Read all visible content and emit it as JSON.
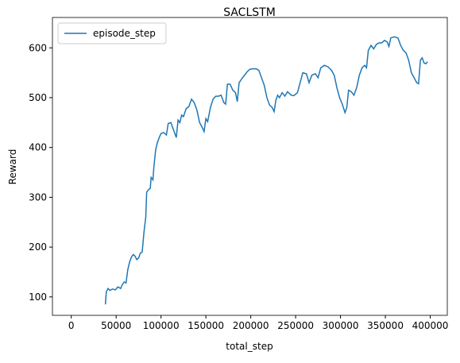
{
  "chart_data": {
    "type": "line",
    "title": "SACLSTM",
    "xlabel": "total_step",
    "ylabel": "Reward",
    "legend": "upper left",
    "x": [
      38000,
      39000,
      41000,
      43000,
      46000,
      49000,
      52000,
      55000,
      57000,
      59000,
      61000,
      63000,
      65000,
      67000,
      69000,
      71000,
      73000,
      75000,
      77000,
      79000,
      81000,
      83000,
      84000,
      86000,
      88000,
      89000,
      91000,
      92000,
      94000,
      96000,
      98000,
      100000,
      103000,
      106000,
      108000,
      111000,
      113000,
      115000,
      117000,
      119000,
      121000,
      123000,
      125000,
      128000,
      131000,
      134000,
      137000,
      140000,
      143000,
      146000,
      148000,
      150000,
      152000,
      155000,
      158000,
      161000,
      164000,
      167000,
      170000,
      172000,
      174000,
      177000,
      180000,
      183000,
      185000,
      187000,
      190000,
      193000,
      196000,
      199000,
      202000,
      206000,
      209000,
      212000,
      215000,
      218000,
      221000,
      224000,
      226000,
      228000,
      230000,
      232000,
      235000,
      238000,
      241000,
      245000,
      248000,
      252000,
      255000,
      258000,
      262000,
      265000,
      268000,
      272000,
      275000,
      278000,
      282000,
      286000,
      290000,
      293000,
      296000,
      299000,
      302000,
      305000,
      307000,
      309000,
      312000,
      315000,
      318000,
      321000,
      324000,
      327000,
      329000,
      331000,
      334000,
      337000,
      340000,
      343000,
      346000,
      349000,
      352000,
      354000,
      356000,
      360000,
      364000,
      367000,
      370000,
      373000,
      376000,
      379000,
      382000,
      385000,
      387000,
      389000,
      391000,
      393000,
      395000,
      397000
    ],
    "series": [
      {
        "name": "episode_step",
        "color": "#1f77b4",
        "values": [
          85,
          110,
          117,
          113,
          116,
          114,
          120,
          117,
          125,
          130,
          128,
          155,
          170,
          180,
          185,
          182,
          175,
          178,
          188,
          190,
          230,
          260,
          310,
          315,
          318,
          340,
          335,
          360,
          395,
          410,
          420,
          428,
          430,
          425,
          448,
          450,
          440,
          430,
          420,
          455,
          450,
          465,
          462,
          478,
          482,
          497,
          490,
          475,
          450,
          440,
          432,
          458,
          452,
          480,
          497,
          503,
          503,
          505,
          490,
          487,
          527,
          527,
          515,
          510,
          492,
          530,
          538,
          545,
          552,
          557,
          558,
          558,
          555,
          540,
          525,
          500,
          485,
          480,
          472,
          495,
          505,
          500,
          510,
          503,
          512,
          505,
          504,
          510,
          530,
          550,
          548,
          530,
          545,
          548,
          540,
          560,
          565,
          562,
          555,
          545,
          520,
          500,
          487,
          470,
          480,
          515,
          512,
          505,
          520,
          545,
          560,
          565,
          560,
          595,
          605,
          598,
          607,
          610,
          610,
          615,
          612,
          603,
          620,
          622,
          620,
          605,
          595,
          590,
          575,
          550,
          540,
          530,
          528,
          575,
          580,
          570,
          568,
          572
        ]
      }
    ],
    "xlim": [
      -21000,
      419000
    ],
    "ylim": [
      63,
      661
    ],
    "xticks": [
      0,
      50000,
      100000,
      150000,
      200000,
      250000,
      300000,
      350000,
      400000
    ],
    "yticks": [
      100,
      200,
      300,
      400,
      500,
      600
    ]
  }
}
